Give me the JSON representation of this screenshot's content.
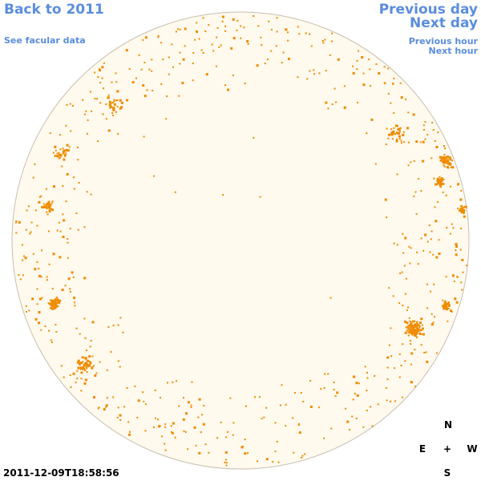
{
  "nav": {
    "back": "Back to 2011",
    "facular": "See facular data",
    "prev_day": "Previous day",
    "next_day": "Next day",
    "prev_hour": "Previous hour",
    "next_hour": "Next hour"
  },
  "compass": {
    "north": "N",
    "east": "E",
    "center": "+",
    "west": "W",
    "south": "S"
  },
  "timestamp": "2011-12-09T18:58:56",
  "colors": {
    "link": "#5b8de0",
    "disk_fill": "#fff9ee",
    "disk_outline": "#c8bfb0",
    "facula": "#f08c00"
  }
}
